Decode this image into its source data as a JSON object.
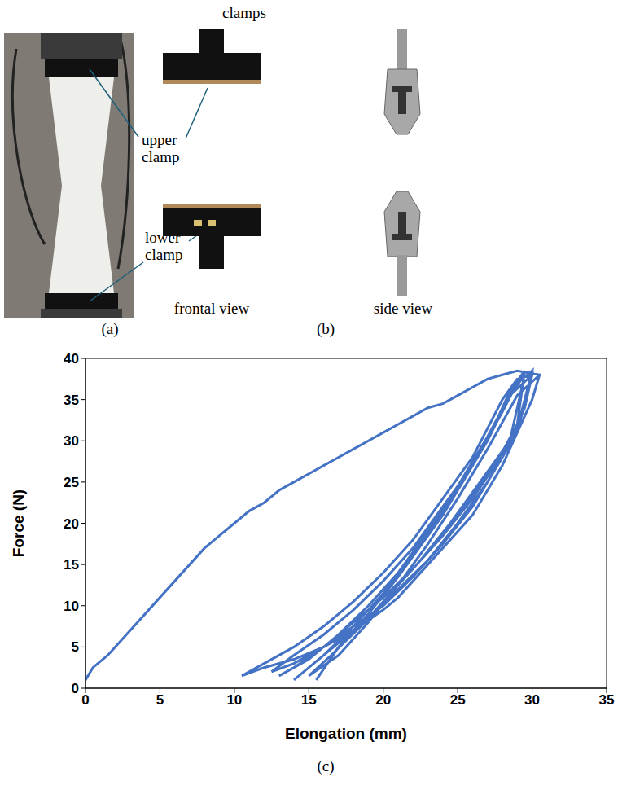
{
  "panels": [
    {
      "label": "(a)",
      "annotations": [
        "upper clamp",
        "lower clamp"
      ]
    },
    {
      "label": "(b)",
      "title": "clamps",
      "views": [
        "frontal view",
        "side view"
      ]
    },
    {
      "label": "(c)"
    }
  ],
  "chart_data": {
    "type": "line",
    "x_label": "Elongation (mm)",
    "y_label": "Force (N)",
    "color": "#4472c4",
    "grid": false,
    "xlim": [
      0,
      35
    ],
    "xticks": [
      0,
      5,
      10,
      15,
      20,
      25,
      30,
      35
    ],
    "ylim": [
      0,
      40
    ],
    "yticks": [
      0,
      5,
      10,
      15,
      20,
      25,
      30,
      35,
      40
    ],
    "x": [
      0,
      0.5,
      1.5,
      2.5,
      4,
      5,
      6,
      7,
      8,
      9,
      10,
      11,
      12,
      13,
      14,
      15,
      16,
      17,
      18,
      19,
      20,
      21,
      22,
      23,
      24,
      25,
      26,
      27,
      28,
      29,
      30.5,
      30,
      29,
      28,
      27,
      26,
      25,
      24,
      23,
      22,
      21,
      20,
      18,
      16,
      14,
      12,
      10.5,
      12,
      14,
      16,
      18,
      20,
      22,
      24,
      26,
      27,
      28,
      29,
      30,
      29.5,
      28,
      27,
      26,
      24,
      22,
      20,
      18,
      16,
      14,
      12.5,
      14,
      16,
      18,
      20,
      22,
      24,
      26,
      27.5,
      28.5,
      29.5,
      29,
      27.5,
      26,
      24,
      22,
      20,
      18,
      16,
      14,
      13,
      15,
      17,
      19,
      21,
      23,
      25,
      27,
      28.5,
      30,
      29,
      27,
      25,
      23,
      21,
      19,
      17,
      15,
      14,
      16,
      18,
      20,
      22,
      24,
      26,
      28,
      29,
      30,
      29,
      27,
      25,
      23,
      21,
      19,
      17,
      15.5,
      17,
      19,
      21,
      23,
      25,
      27,
      28.5,
      29.5,
      28.5,
      26.5,
      24.5,
      22.5,
      20.5,
      18.5,
      16.5,
      15,
      17,
      19,
      21,
      23,
      25,
      27,
      29,
      30.5
    ],
    "values": [
      1,
      2.5,
      4,
      6,
      9,
      11,
      13,
      15,
      17,
      18.5,
      20,
      21.5,
      22.5,
      24,
      25,
      26,
      27,
      28,
      29,
      30,
      31,
      32,
      33,
      34,
      34.5,
      35.5,
      36.5,
      37.5,
      38,
      38.5,
      38,
      35,
      31,
      27,
      24,
      21,
      19,
      17,
      15,
      13,
      11,
      9.5,
      7,
      5,
      3.5,
      2.5,
      1.5,
      3,
      5,
      7.5,
      10.5,
      14,
      18,
      23,
      28,
      31.5,
      35,
      37.5,
      38,
      34,
      28,
      25,
      22,
      17.5,
      13.5,
      10,
      7.5,
      5,
      3,
      2,
      4,
      6.5,
      9.5,
      13,
      17,
      22,
      27,
      32,
      36,
      38.5,
      32,
      27,
      23,
      18.5,
      14.5,
      11,
      8,
      5,
      2.5,
      1.5,
      3.5,
      6.5,
      10,
      14,
      19,
      24.5,
      30.5,
      35.5,
      38,
      31,
      25,
      20,
      15.5,
      12,
      8.5,
      5.5,
      2.5,
      1,
      4,
      7.5,
      11.5,
      16,
      21,
      27,
      33.5,
      37,
      38.5,
      31.5,
      26,
      21,
      16.5,
      12.5,
      8.5,
      5,
      1,
      5,
      9,
      13.5,
      18.5,
      24,
      30,
      35.5,
      38,
      30,
      25,
      20,
      15.5,
      11.5,
      7.5,
      4,
      1.5,
      4,
      8,
      12.5,
      17.5,
      23,
      29,
      35.5,
      38
    ]
  }
}
